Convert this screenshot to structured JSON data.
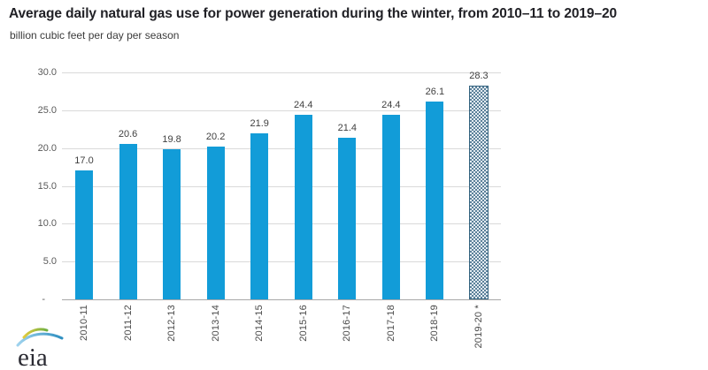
{
  "page": {
    "title": "Average daily natural gas use for power generation during the winter, from 2010–11 to 2019–20",
    "subtitle": "billion cubic feet per day per season",
    "logo_text": "eia"
  },
  "chart_data": {
    "type": "bar",
    "title": "Average daily natural gas use for power generation during the winter, from 2010–11 to 2019–20",
    "ylabel": "billion cubic feet per day per season",
    "xlabel": "",
    "categories": [
      "2010-11",
      "2011-12",
      "2012-13",
      "2013-14",
      "2014-15",
      "2015-16",
      "2016-17",
      "2017-18",
      "2018-19",
      "2019-20 *"
    ],
    "values": [
      17.0,
      20.6,
      19.8,
      20.2,
      21.9,
      24.4,
      21.4,
      24.4,
      26.1,
      28.3
    ],
    "data_labels": [
      "17.0",
      "20.6",
      "19.8",
      "20.2",
      "21.9",
      "24.4",
      "21.4",
      "24.4",
      "26.1",
      "28.3"
    ],
    "ylim": [
      0,
      30
    ],
    "yticks": [
      {
        "value": 30,
        "label": "30.0"
      },
      {
        "value": 25,
        "label": "25.0"
      },
      {
        "value": 20,
        "label": "20.0"
      },
      {
        "value": 15,
        "label": "15.0"
      },
      {
        "value": 10,
        "label": "10.0"
      },
      {
        "value": 5,
        "label": "5.0"
      },
      {
        "value": 0,
        "label": "-"
      }
    ],
    "grid": true,
    "legend": "none",
    "pattern_bar_index": 9,
    "colors": {
      "bar": "#129CD8",
      "pattern_fill_light": "#E4ECF2",
      "pattern_fill_dark": "#5B8099",
      "pattern_border": "#33637F",
      "gridline": "#D9D9D9",
      "axis_line": "#A8A8A8",
      "value_label": "#3F3F3F",
      "ytick_label": "#595959",
      "xtick_label": "#4A4A4A"
    }
  },
  "logo_colors": {
    "text": "#2B2B33",
    "swoosh_blue_light": "#9FD3EE",
    "swoosh_blue_dark": "#2E8FC0",
    "swoosh_yellow": "#E3CB3C",
    "swoosh_green": "#6FB043"
  }
}
